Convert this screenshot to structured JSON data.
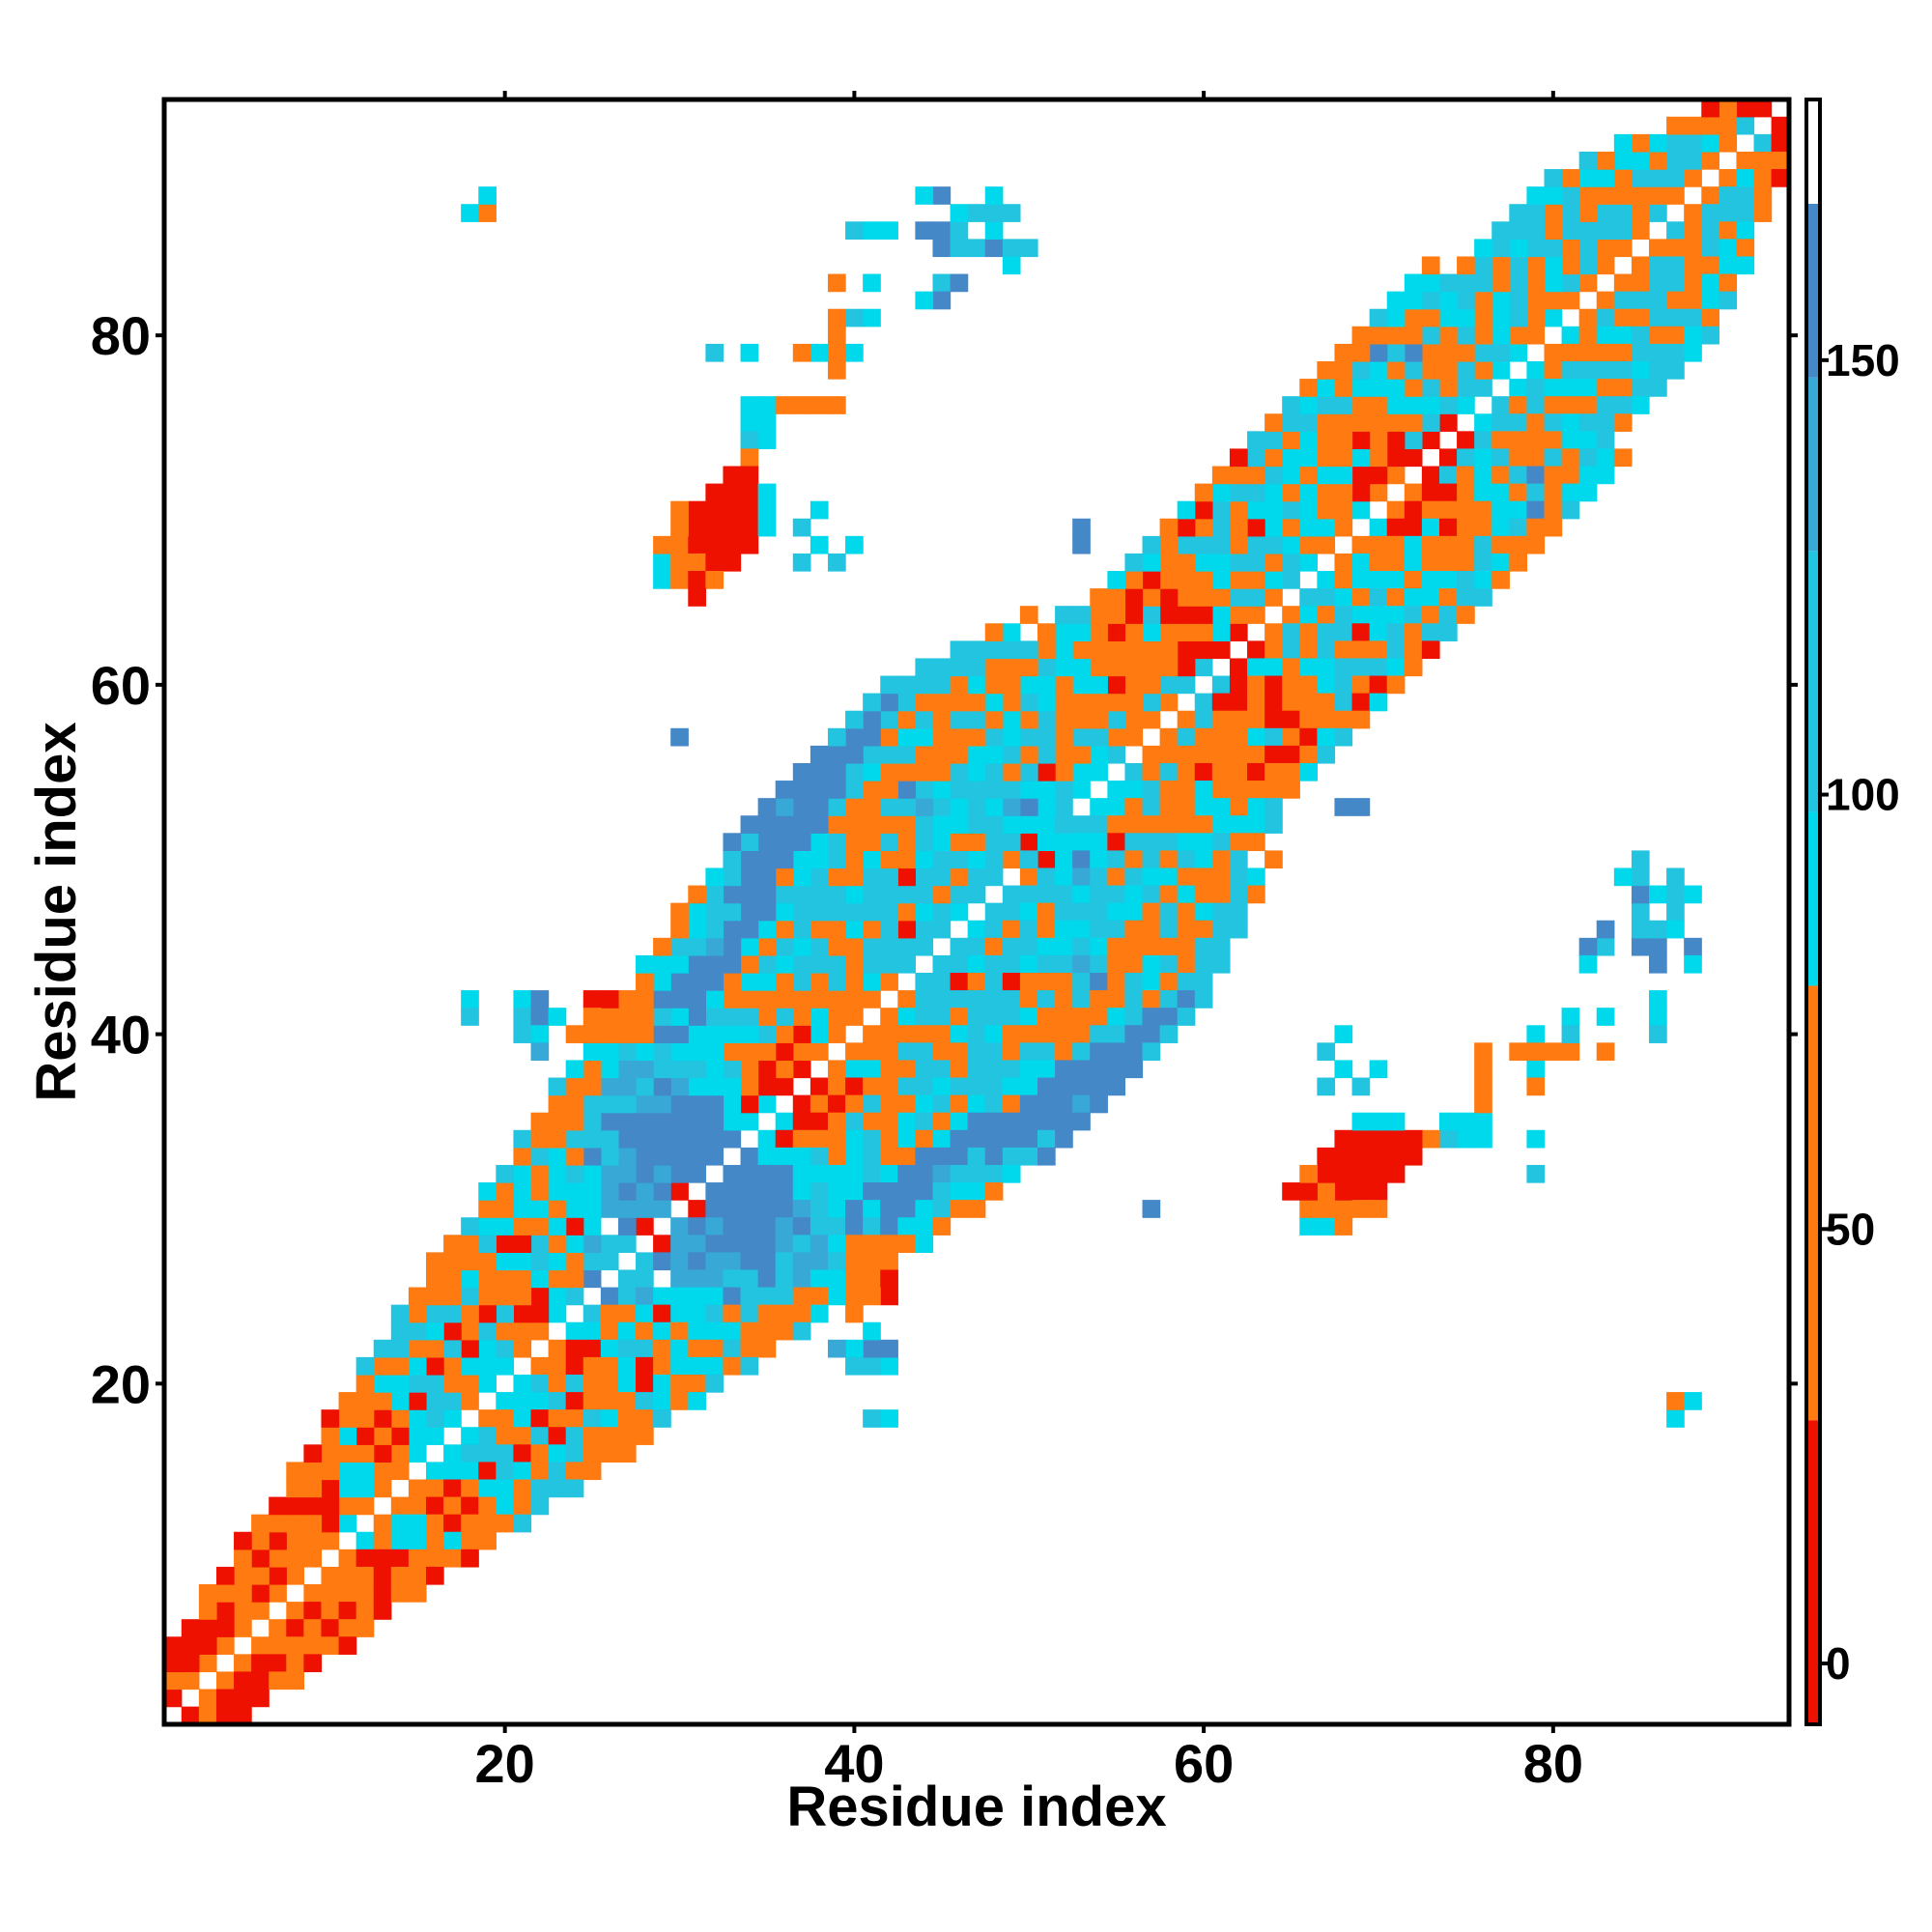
{
  "chart_data": {
    "type": "heatmap",
    "title": "",
    "xlabel": "Residue index",
    "ylabel": "Residue index",
    "xlim": [
      0.5,
      93.5
    ],
    "ylim": [
      0.5,
      93.5
    ],
    "x_ticks": [
      20,
      40,
      60,
      80
    ],
    "y_ticks": [
      20,
      40,
      60,
      80
    ],
    "colorbar": {
      "ticks": [
        0,
        50,
        100,
        150
      ],
      "range": [
        -7,
        180
      ],
      "bands": [
        {
          "from": -7,
          "to": 28,
          "color": "#ee1100"
        },
        {
          "from": 28,
          "to": 78,
          "color": "#ff7a10"
        },
        {
          "from": 78,
          "to": 98,
          "color": "#00d8ec"
        },
        {
          "from": 98,
          "to": 128,
          "color": "#22c4e0"
        },
        {
          "from": 128,
          "to": 148,
          "color": "#38a8d6"
        },
        {
          "from": 148,
          "to": 168,
          "color": "#4488c8"
        },
        {
          "from": 168,
          "to": 180,
          "color": "#ffffff"
        }
      ]
    },
    "value_bins": {
      "r": {
        "value": 10,
        "color": "#ee1100"
      },
      "o": {
        "value": 45,
        "color": "#ff7a10"
      },
      "c": {
        "value": 90,
        "color": "#00d8ec"
      },
      "s": {
        "value": 120,
        "color": "#22c4e0"
      },
      "m": {
        "value": 140,
        "color": "#38a8d6"
      },
      "b": {
        "value": 160,
        "color": "#4488c8"
      }
    },
    "grid": false,
    "legend": "colorbar-right",
    "lower_triangle_encoding": "each row is j = i + k: [i_start, i_end, bin_string], one bin char per residue i",
    "lower_triangle": {
      "k1": [
        1,
        92,
        "rooooooooocooocccoccoocsbssrmrbbbccrrooooossscssosssccsooossrrooscoocoorrrcsccocooooosoooosrr"
      ],
      "k2": [
        1,
        91,
        "oorrorroorocoocssocsorcossbmbbbbcrroocoocssssssssoosccoossrrcoscsocorrrssssosooossosoosscor"
      ],
      "k3": [
        1,
        90,
        "rrrrooooorccrrcsoccorroomnmmmbbbcorrrcoossrcoocssoooossooorocsooccoororocosscsocosssosssoo"
      ],
      "k4": [
        1,
        89,
        "rrooorrorrcooorsorssoccccmbbbbbbcooooosossosssoocsrosooocooroossococcoocsooocsocossososor"
      ],
      "k5": [
        3,
        88,
        "orooorooorrcsrsoroosorcmmbbbbcsossoosoossssoccsssooorooorocsscsccorocooosocsossooocco"
      ],
      "k6": [
        5,
        87,
        "rorooocooccorooocscccmmbbbccocoossocssrcccoooosoococoroocorcoooooocsoocoossosocco"
      ],
      "k7": [
        8,
        86,
        "orooocoocssocrooccsbbmmsccsoossosssoscssosssocoooorocsoccccooocosscssocsoscoc"
      ],
      "k8": [
        10,
        84,
        "rooosssocoroccsbsbmbsccsocccoscsoossccscococorrooossossccosccsoocssssscos"
      ],
      "k9": [
        12,
        83,
        "sssoooosccocosbsssccsocsssssocsoooosscsccooorrosossooossossoossocsscs"
      ],
      "k10": [
        14,
        73,
        "soooocococsssmmbbbcoooossooosooooooocsccooocorrcosssccooocccco"
      ],
      "k11": [
        16,
        73,
        "oosoocsoosmmbbbbbbcccsssoocooooscooocsocssocoorsosoooosccoo"
      ],
      "k12": [
        19,
        52,
        "csooooocsmmbbbbbbsccsoooooosooosos"
      ],
      "k13": [
        21,
        51,
        "soooocsbbbbmbbboccoooossoocos"
      ],
      "k14": [
        23,
        50,
        "sccccsccsssbbbbbsscsosoosscoo"
      ],
      "k15": [
        26,
        48,
        "scocscsbbbbbbbsscoosssoo"
      ],
      "k16": [
        28,
        46,
        "coocssbbbbbbbbsssssss"
      ],
      "k17": [
        30,
        44,
        "oocssbmbbbbbbsssc"
      ],
      "k18": [
        33,
        42,
        "bbbbbbssss"
      ]
    },
    "extra_cells": [
      [
        2,
        4,
        "r"
      ],
      [
        18,
        87,
        "c"
      ],
      [
        19,
        87,
        "o"
      ],
      [
        19,
        88,
        "c"
      ],
      [
        41,
        86,
        "c"
      ],
      [
        42,
        86,
        "c"
      ],
      [
        45,
        86,
        "c"
      ],
      [
        46,
        86,
        "s"
      ],
      [
        45,
        85,
        "b"
      ],
      [
        46,
        85,
        "s"
      ],
      [
        47,
        85,
        "s"
      ],
      [
        48,
        85,
        "b"
      ],
      [
        49,
        85,
        "s"
      ],
      [
        50,
        85,
        "s"
      ],
      [
        49,
        84,
        "c"
      ],
      [
        39,
        83,
        "o"
      ],
      [
        41,
        83,
        "c"
      ],
      [
        45,
        83,
        "s"
      ],
      [
        46,
        83,
        "b"
      ],
      [
        39,
        81,
        "o"
      ],
      [
        39,
        80,
        "o"
      ],
      [
        32,
        79,
        "s"
      ],
      [
        34,
        79,
        "s"
      ],
      [
        34,
        76,
        "s"
      ],
      [
        35,
        76,
        "s"
      ],
      [
        36,
        76,
        "o"
      ],
      [
        37,
        76,
        "o"
      ],
      [
        38,
        76,
        "o"
      ],
      [
        34,
        75,
        "c"
      ],
      [
        35,
        75,
        "s"
      ],
      [
        34,
        74,
        "c"
      ],
      [
        35,
        74,
        "c"
      ],
      [
        34,
        73,
        "o"
      ],
      [
        33,
        72,
        "r"
      ],
      [
        34,
        72,
        "r"
      ],
      [
        32,
        71,
        "r"
      ],
      [
        33,
        71,
        "r"
      ],
      [
        34,
        71,
        "r"
      ],
      [
        35,
        71,
        "c"
      ],
      [
        31,
        70,
        "r"
      ],
      [
        32,
        70,
        "r"
      ],
      [
        33,
        70,
        "r"
      ],
      [
        34,
        70,
        "r"
      ],
      [
        35,
        70,
        "c"
      ],
      [
        31,
        69,
        "r"
      ],
      [
        32,
        69,
        "r"
      ],
      [
        33,
        69,
        "r"
      ],
      [
        34,
        69,
        "r"
      ],
      [
        35,
        69,
        "c"
      ],
      [
        37,
        69,
        "s"
      ],
      [
        30,
        68,
        "o"
      ],
      [
        31,
        68,
        "r"
      ],
      [
        32,
        68,
        "r"
      ],
      [
        33,
        68,
        "r"
      ],
      [
        34,
        68,
        "r"
      ],
      [
        29,
        67,
        "o"
      ],
      [
        30,
        67,
        "o"
      ],
      [
        31,
        67,
        "r"
      ],
      [
        32,
        67,
        "r"
      ],
      [
        33,
        67,
        "r"
      ],
      [
        37,
        67,
        "s"
      ],
      [
        39,
        67,
        "s"
      ],
      [
        29,
        66,
        "c"
      ],
      [
        30,
        66,
        "o"
      ],
      [
        31,
        66,
        "r"
      ],
      [
        32,
        66,
        "o"
      ],
      [
        31,
        65,
        "r"
      ],
      [
        53,
        68,
        "b"
      ],
      [
        30,
        57,
        "b"
      ],
      [
        79,
        70,
        "b"
      ],
      [
        72,
        79,
        "b"
      ],
      [
        57,
        64,
        "c"
      ],
      [
        56,
        63,
        "o"
      ],
      [
        56,
        62,
        "o"
      ],
      [
        57,
        62,
        "c"
      ],
      [
        56,
        61,
        "o"
      ],
      [
        43,
        57,
        "o"
      ],
      [
        44,
        57,
        "c"
      ],
      [
        46,
        57,
        "c"
      ],
      [
        47,
        57,
        "o"
      ],
      [
        47,
        56,
        "c"
      ],
      [
        48,
        56,
        "c"
      ],
      [
        48,
        55,
        "s"
      ],
      [
        59,
        57,
        "s"
      ],
      [
        60,
        57,
        "o"
      ],
      [
        61,
        57,
        "o"
      ],
      [
        62,
        57,
        "o"
      ],
      [
        63,
        57,
        "c"
      ],
      [
        64,
        57,
        "s"
      ],
      [
        60,
        56,
        "o"
      ],
      [
        61,
        56,
        "o"
      ],
      [
        62,
        56,
        "o"
      ],
      [
        63,
        56,
        "o"
      ],
      [
        43,
        54,
        "o"
      ],
      [
        44,
        54,
        "s"
      ],
      [
        45,
        54,
        "s"
      ],
      [
        46,
        54,
        "c"
      ],
      [
        47,
        54,
        "s"
      ],
      [
        48,
        54,
        "s"
      ],
      [
        49,
        54,
        "s"
      ],
      [
        50,
        54,
        "c"
      ],
      [
        51,
        54,
        "c"
      ],
      [
        44,
        53,
        "c"
      ],
      [
        46,
        53,
        "b"
      ],
      [
        47,
        53,
        "s"
      ],
      [
        48,
        53,
        "s"
      ],
      [
        49,
        53,
        "c"
      ],
      [
        50,
        53,
        "c"
      ],
      [
        51,
        53,
        "c"
      ],
      [
        47,
        52,
        "s"
      ],
      [
        48,
        52,
        "b"
      ],
      [
        49,
        52,
        "c"
      ],
      [
        50,
        52,
        "c"
      ],
      [
        51,
        52,
        "c"
      ],
      [
        52,
        52,
        "s"
      ],
      [
        48,
        51,
        "s"
      ],
      [
        49,
        51,
        "s"
      ],
      [
        50,
        51,
        "r"
      ],
      [
        51,
        51,
        "c"
      ],
      [
        50,
        50,
        "s"
      ],
      [
        51,
        50,
        "r"
      ],
      [
        52,
        50,
        "c"
      ],
      [
        53,
        50,
        "b"
      ],
      [
        52,
        49,
        "c"
      ],
      [
        53,
        49,
        "m"
      ],
      [
        52,
        48,
        "s"
      ],
      [
        53,
        48,
        "c"
      ],
      [
        52,
        47,
        "s"
      ],
      [
        53,
        47,
        "s"
      ],
      [
        53,
        46,
        "c"
      ],
      [
        54,
        46,
        "s"
      ],
      [
        55,
        46,
        "s"
      ],
      [
        56,
        46,
        "o"
      ],
      [
        57,
        46,
        "o"
      ],
      [
        54,
        45,
        "c"
      ],
      [
        57,
        45,
        "o"
      ],
      [
        53,
        44,
        "m"
      ],
      [
        54,
        44,
        "s"
      ],
      [
        53,
        43,
        "s"
      ],
      [
        54,
        43,
        "b"
      ],
      [
        57,
        43,
        "c"
      ],
      [
        52,
        42,
        "o"
      ],
      [
        53,
        42,
        "s"
      ],
      [
        57,
        42,
        "o"
      ],
      [
        69,
        53,
        "b"
      ],
      [
        87,
        49,
        "s"
      ],
      [
        86,
        48,
        "c"
      ],
      [
        87,
        48,
        "s"
      ],
      [
        88,
        48,
        "c"
      ],
      [
        87,
        47,
        "s"
      ],
      [
        87,
        46,
        "c"
      ],
      [
        82,
        45,
        "b"
      ],
      [
        86,
        45,
        "b"
      ],
      [
        88,
        45,
        "b"
      ],
      [
        82,
        44,
        "c"
      ],
      [
        86,
        44,
        "b"
      ],
      [
        88,
        44,
        "c"
      ],
      [
        81,
        41,
        "c"
      ],
      [
        86,
        41,
        "c"
      ],
      [
        81,
        40,
        "s"
      ],
      [
        86,
        40,
        "s"
      ],
      [
        68,
        40,
        "c"
      ],
      [
        68,
        38,
        "c"
      ],
      [
        70,
        38,
        "c"
      ],
      [
        79,
        40,
        "c"
      ],
      [
        79,
        38,
        "c"
      ],
      [
        79,
        37,
        "o"
      ],
      [
        76,
        39,
        "o"
      ],
      [
        76,
        38,
        "o"
      ],
      [
        76,
        37,
        "o"
      ],
      [
        76,
        36,
        "o"
      ],
      [
        78,
        39,
        "o"
      ],
      [
        79,
        39,
        "o"
      ],
      [
        83,
        39,
        "o"
      ],
      [
        70,
        35,
        "c"
      ],
      [
        71,
        35,
        "c"
      ],
      [
        75,
        35,
        "c"
      ],
      [
        76,
        35,
        "c"
      ],
      [
        79,
        34,
        "c"
      ],
      [
        79,
        32,
        "s"
      ],
      [
        70,
        34,
        "r"
      ],
      [
        71,
        34,
        "r"
      ],
      [
        72,
        34,
        "r"
      ],
      [
        73,
        34,
        "o"
      ],
      [
        74,
        34,
        "s"
      ],
      [
        75,
        34,
        "c"
      ],
      [
        76,
        34,
        "c"
      ],
      [
        69,
        33,
        "r"
      ],
      [
        70,
        33,
        "r"
      ],
      [
        71,
        33,
        "r"
      ],
      [
        72,
        33,
        "r"
      ],
      [
        68,
        32,
        "r"
      ],
      [
        69,
        32,
        "r"
      ],
      [
        70,
        32,
        "r"
      ],
      [
        71,
        32,
        "r"
      ],
      [
        67,
        31,
        "o"
      ],
      [
        68,
        31,
        "r"
      ],
      [
        69,
        31,
        "r"
      ],
      [
        70,
        31,
        "r"
      ],
      [
        68,
        30,
        "o"
      ],
      [
        69,
        30,
        "o"
      ],
      [
        70,
        30,
        "o"
      ],
      [
        57,
        30,
        "b"
      ],
      [
        67,
        29,
        "c"
      ],
      [
        68,
        29,
        "o"
      ],
      [
        87,
        19,
        "o"
      ],
      [
        88,
        19,
        "c"
      ],
      [
        87,
        18,
        "c"
      ],
      [
        18,
        42,
        "s"
      ],
      [
        18,
        41,
        "m"
      ],
      [
        21,
        42,
        "b"
      ],
      [
        22,
        42,
        "s"
      ],
      [
        21,
        41,
        "b"
      ],
      [
        22,
        41,
        "s"
      ],
      [
        23,
        41,
        "c"
      ],
      [
        22,
        40,
        "m"
      ],
      [
        22,
        39,
        "m"
      ],
      [
        25,
        42,
        "r"
      ],
      [
        26,
        42,
        "o"
      ],
      [
        27,
        42,
        "o"
      ],
      [
        28,
        42,
        "o"
      ],
      [
        25,
        41,
        "o"
      ],
      [
        26,
        41,
        "r"
      ],
      [
        27,
        41,
        "o"
      ],
      [
        28,
        41,
        "o"
      ],
      [
        29,
        41,
        "s"
      ],
      [
        24,
        40,
        "o"
      ],
      [
        25,
        40,
        "o"
      ],
      [
        26,
        40,
        "o"
      ],
      [
        27,
        40,
        "o"
      ],
      [
        28,
        40,
        "o"
      ],
      [
        26,
        39,
        "c"
      ],
      [
        28,
        39,
        "c"
      ],
      [
        29,
        39,
        "s"
      ],
      [
        29,
        44,
        "c"
      ],
      [
        30,
        44,
        "c"
      ],
      [
        41,
        30,
        "c"
      ],
      [
        41,
        28,
        "o"
      ],
      [
        42,
        28,
        "o"
      ],
      [
        41,
        27,
        "o"
      ],
      [
        42,
        27,
        "o"
      ],
      [
        40,
        26,
        "o"
      ],
      [
        41,
        26,
        "o"
      ],
      [
        42,
        26,
        "r"
      ],
      [
        40,
        25,
        "o"
      ],
      [
        41,
        25,
        "o"
      ],
      [
        40,
        22,
        "c"
      ],
      [
        41,
        22,
        "b"
      ],
      [
        42,
        22,
        "b"
      ],
      [
        40,
        21,
        "s"
      ],
      [
        41,
        21,
        "s"
      ],
      [
        42,
        21,
        "c"
      ],
      [
        41,
        18,
        "s"
      ],
      [
        42,
        18,
        "c"
      ]
    ]
  }
}
